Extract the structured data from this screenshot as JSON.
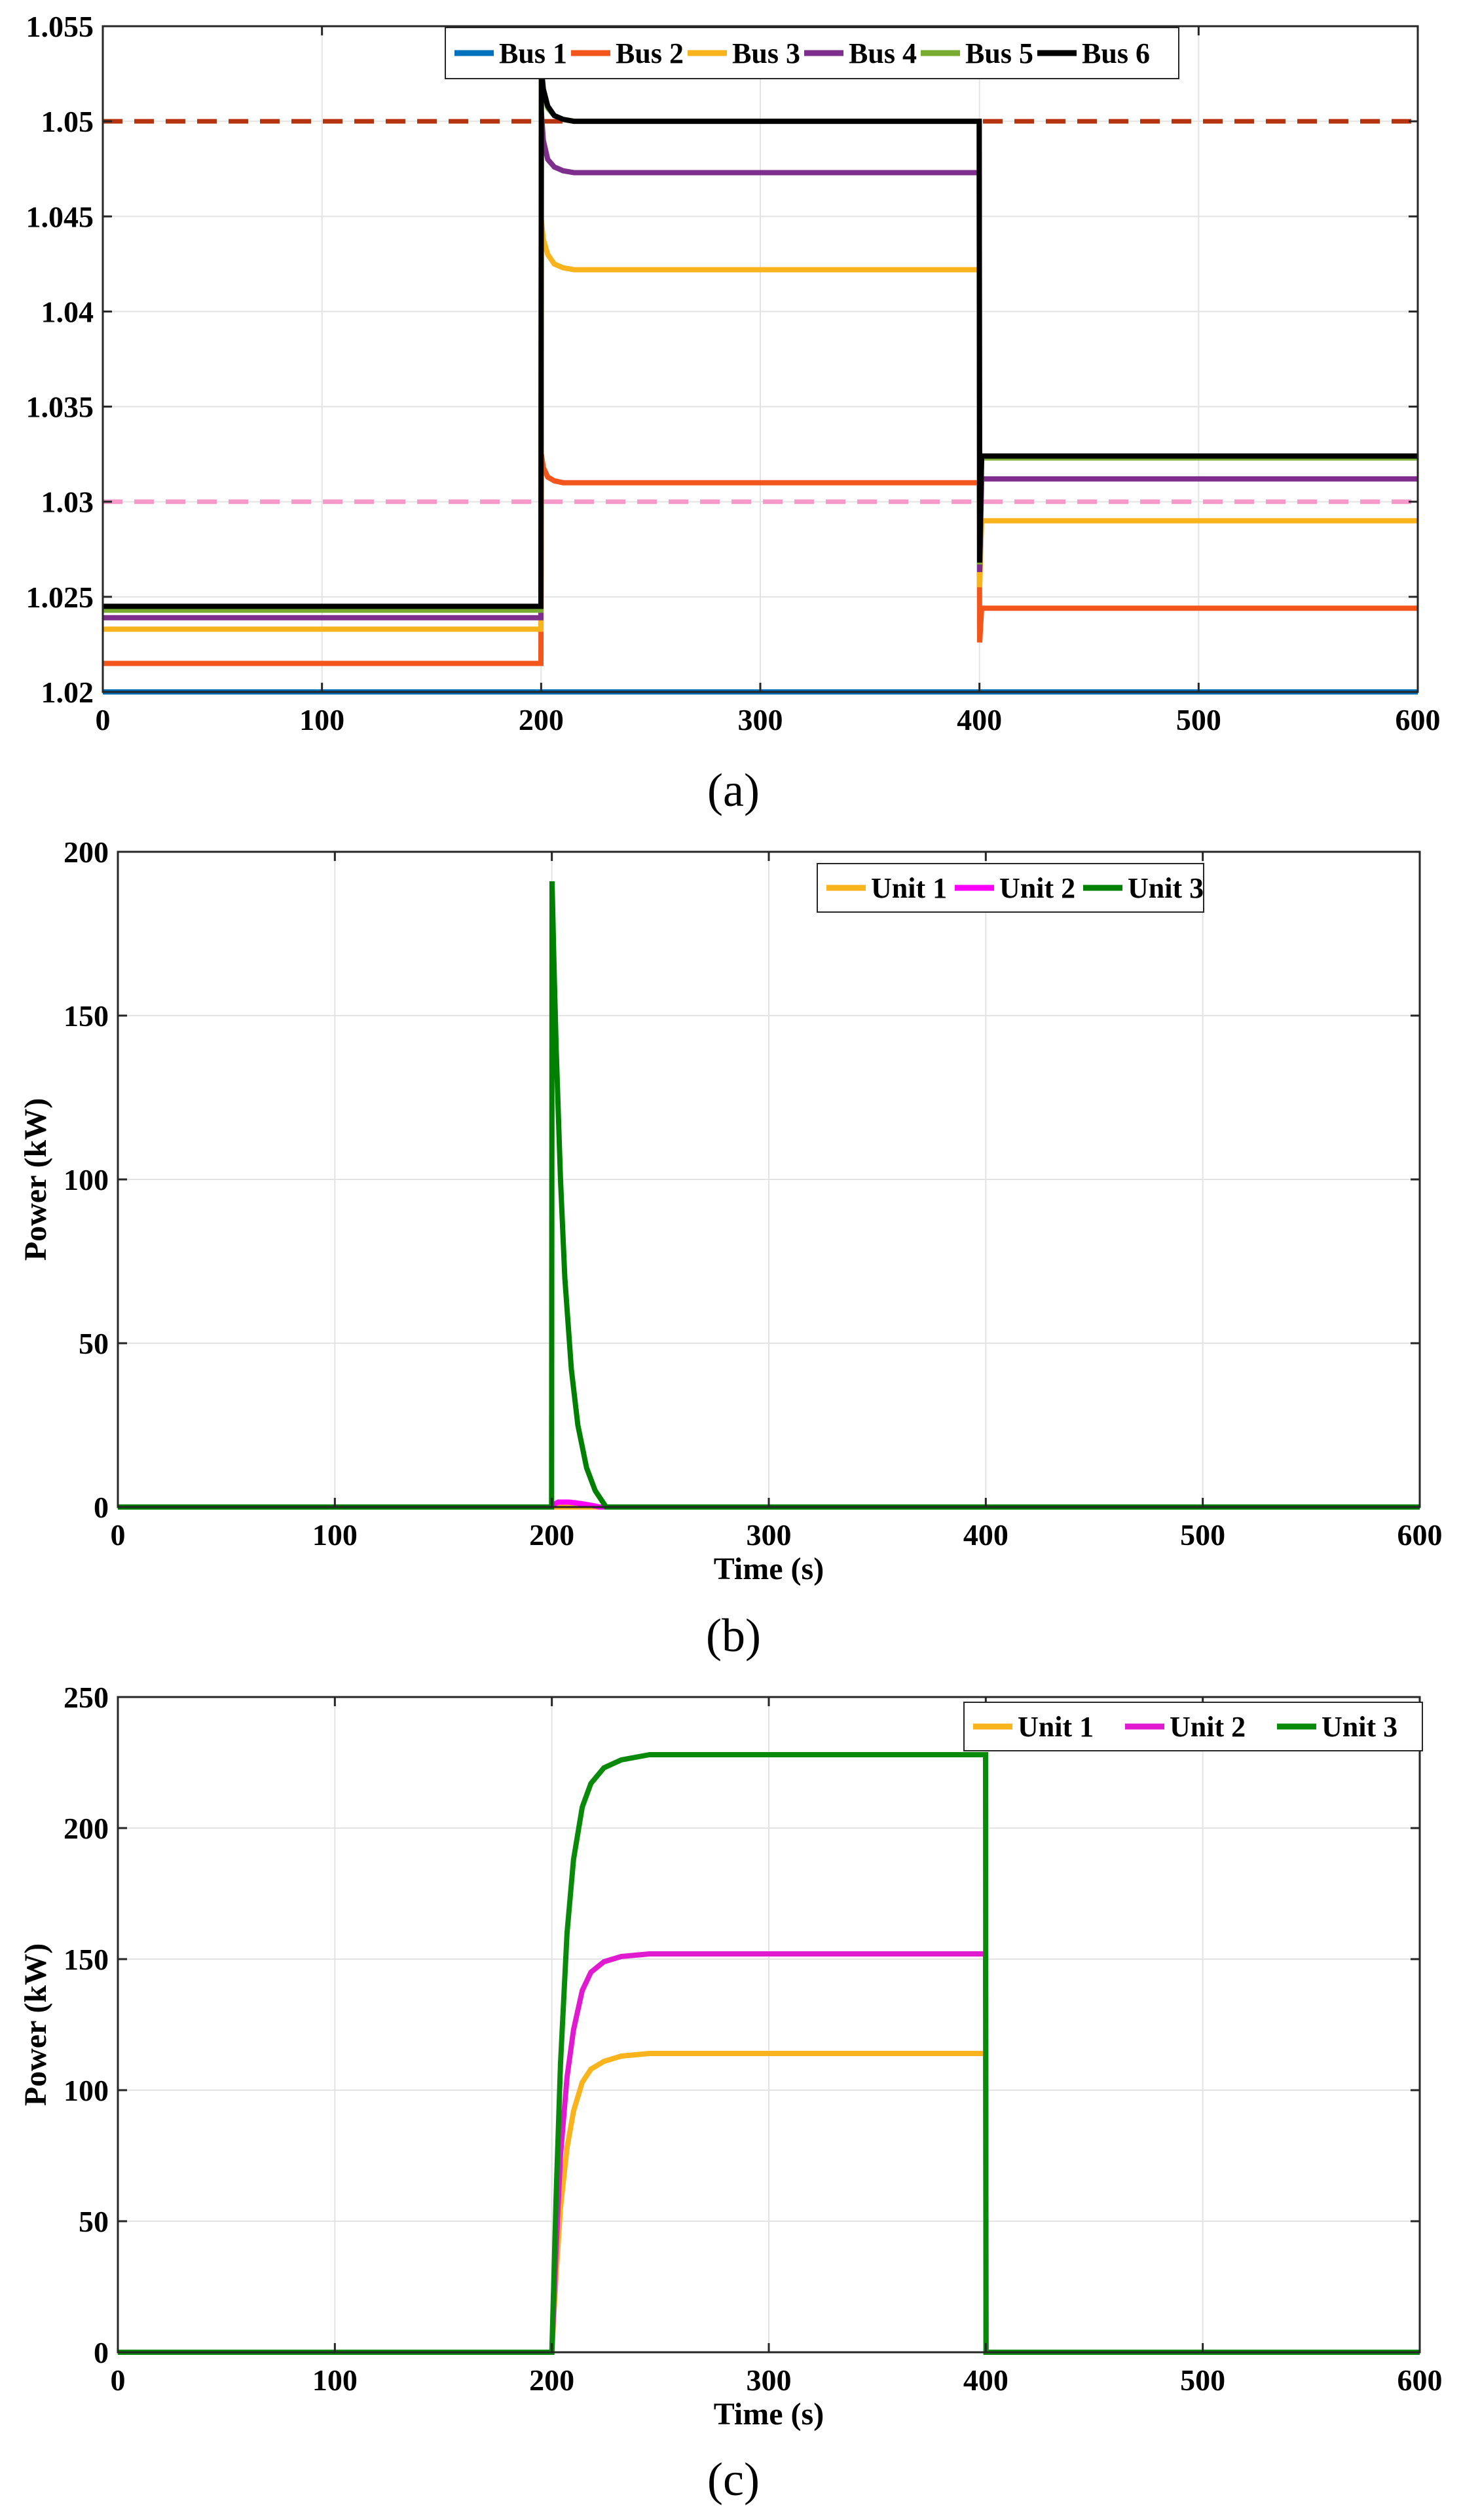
{
  "chart_data": [
    {
      "type": "line",
      "panel_label": "(a)",
      "xlabel": "",
      "ylabel": "",
      "xlim": [
        0,
        600
      ],
      "ylim": [
        1.02,
        1.055
      ],
      "xticks": [
        0,
        100,
        200,
        300,
        400,
        500,
        600
      ],
      "yticks": [
        1.02,
        1.025,
        1.03,
        1.035,
        1.04,
        1.045,
        1.05,
        1.055
      ],
      "ytick_labels": [
        "1.02",
        "1.025",
        "1.03",
        "1.035",
        "1.04",
        "1.045",
        "1.05",
        "1.055"
      ],
      "grid": true,
      "legend_placement": "top-center",
      "legend_layout": "horizontal",
      "series": [
        {
          "name": "Bus 1",
          "color": "#0072BD",
          "x": [
            0,
            600
          ],
          "y": [
            1.02,
            1.02
          ]
        },
        {
          "name": "Bus 2",
          "color": "#F2561D",
          "x": [
            0,
            199.9,
            200.1,
            201,
            203,
            206,
            210,
            215,
            230,
            399.9,
            400.1,
            401,
            600
          ],
          "y": [
            1.0215,
            1.0215,
            1.0325,
            1.0318,
            1.0313,
            1.0311,
            1.031,
            1.031,
            1.031,
            1.031,
            1.0226,
            1.0244,
            1.0244
          ]
        },
        {
          "name": "Bus 3",
          "color": "#F9B31C",
          "x": [
            0,
            199.9,
            200.1,
            201,
            203,
            206,
            210,
            215,
            230,
            399.9,
            400.1,
            401,
            600
          ],
          "y": [
            1.0233,
            1.0233,
            1.0448,
            1.0438,
            1.043,
            1.0425,
            1.0423,
            1.0422,
            1.0422,
            1.0422,
            1.0255,
            1.029,
            1.029
          ]
        },
        {
          "name": "Bus 4",
          "color": "#7E2F8E",
          "x": [
            0,
            199.9,
            200.1,
            201,
            203,
            206,
            210,
            215,
            230,
            399.9,
            400.1,
            401,
            600
          ],
          "y": [
            1.0239,
            1.0239,
            1.0505,
            1.049,
            1.048,
            1.0476,
            1.0474,
            1.0473,
            1.0473,
            1.0473,
            1.0263,
            1.0312,
            1.0312
          ]
        },
        {
          "name": "Bus 5",
          "color": "#77AC30",
          "x": [
            0,
            199.9,
            200.1,
            201,
            203,
            206,
            210,
            215,
            230,
            399.9,
            400.1,
            401,
            600
          ],
          "y": [
            1.0243,
            1.0243,
            1.0526,
            1.0515,
            1.0507,
            1.0503,
            1.0501,
            1.05,
            1.05,
            1.05,
            1.0267,
            1.0323,
            1.0323
          ]
        },
        {
          "name": "Bus 6",
          "color": "#000000",
          "x": [
            0,
            199.9,
            200.1,
            201,
            203,
            206,
            210,
            215,
            230,
            399.9,
            400.1,
            401,
            600
          ],
          "y": [
            1.0245,
            1.0245,
            1.0528,
            1.0517,
            1.0508,
            1.0503,
            1.0501,
            1.05,
            1.05,
            1.05,
            1.0268,
            1.0324,
            1.0324
          ]
        }
      ],
      "reference_lines": [
        {
          "y": 1.05,
          "color": "#B5330E",
          "style": "dashed"
        },
        {
          "y": 1.03,
          "color": "#F79AC9",
          "style": "dashed"
        }
      ]
    },
    {
      "type": "line",
      "panel_label": "(b)",
      "xlabel": "Time (s)",
      "ylabel": "Power (kW)",
      "xlim": [
        0,
        600
      ],
      "ylim": [
        0,
        200
      ],
      "xticks": [
        0,
        100,
        200,
        300,
        400,
        500,
        600
      ],
      "yticks": [
        0,
        50,
        100,
        150,
        200
      ],
      "ytick_labels": [
        "0",
        "50",
        "100",
        "150",
        "200"
      ],
      "grid": true,
      "legend_placement": "top-right",
      "legend_layout": "horizontal",
      "series": [
        {
          "name": "Unit 1",
          "color": "#F9B31C",
          "x": [
            0,
            600
          ],
          "y": [
            0,
            0
          ]
        },
        {
          "name": "Unit 2",
          "color": "#FF00FF",
          "x": [
            0,
            199.9,
            200.1,
            203,
            208,
            214,
            220,
            222,
            600
          ],
          "y": [
            0,
            0,
            0.5,
            1.5,
            1.5,
            1.0,
            0.3,
            0,
            0
          ]
        },
        {
          "name": "Unit 3",
          "color": "#008000",
          "x": [
            0,
            199.9,
            200.1,
            201,
            202,
            204,
            206,
            209,
            212,
            216,
            220,
            225,
            600
          ],
          "y": [
            0,
            0,
            191,
            165,
            140,
            100,
            70,
            42,
            25,
            12,
            5,
            0,
            0
          ]
        }
      ]
    },
    {
      "type": "line",
      "panel_label": "(c)",
      "xlabel": "Time (s)",
      "ylabel": "Power (kW)",
      "xlim": [
        0,
        600
      ],
      "ylim": [
        0,
        250
      ],
      "xticks": [
        0,
        100,
        200,
        300,
        400,
        500,
        600
      ],
      "yticks": [
        0,
        50,
        100,
        150,
        200,
        250
      ],
      "ytick_labels": [
        "0",
        "50",
        "100",
        "150",
        "200",
        "250"
      ],
      "grid": true,
      "legend_placement": "top-right",
      "legend_layout": "horizontal",
      "series": [
        {
          "name": "Unit 1",
          "color": "#F9B31C",
          "x": [
            0,
            200,
            202,
            204,
            207,
            210,
            214,
            218,
            224,
            232,
            245,
            260,
            399.9,
            400.1,
            600
          ],
          "y": [
            0,
            0,
            30,
            55,
            78,
            92,
            103,
            108,
            111,
            113,
            114,
            114,
            114,
            0,
            0
          ]
        },
        {
          "name": "Unit 2",
          "color": "#E01BCF",
          "x": [
            0,
            200,
            202,
            204,
            207,
            210,
            214,
            218,
            224,
            232,
            245,
            260,
            399.9,
            400.1,
            600
          ],
          "y": [
            0,
            0,
            40,
            75,
            105,
            123,
            138,
            145,
            149,
            151,
            152,
            152,
            152,
            0,
            0
          ]
        },
        {
          "name": "Unit 3",
          "color": "#0A8A0A",
          "x": [
            0,
            200,
            202,
            204,
            207,
            210,
            214,
            218,
            224,
            232,
            245,
            260,
            399.9,
            400.1,
            600
          ],
          "y": [
            0,
            0,
            60,
            110,
            160,
            188,
            208,
            217,
            223,
            226,
            228,
            228,
            228,
            0,
            0
          ]
        }
      ]
    }
  ]
}
